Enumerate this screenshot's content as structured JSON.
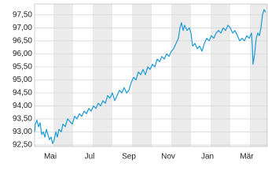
{
  "chart_data": {
    "type": "line",
    "x": [
      -0.96,
      -0.92,
      -0.84,
      -0.76,
      -0.68,
      -0.6,
      -0.52,
      -0.44,
      -0.36,
      -0.28,
      -0.2,
      -0.12,
      -0.04,
      0.04,
      0.12,
      0.2,
      0.28,
      0.4,
      0.48,
      0.6,
      0.72,
      0.84,
      0.96,
      1.08,
      1.2,
      1.32,
      1.44,
      1.56,
      1.68,
      1.8,
      1.92,
      2.04,
      2.16,
      2.28,
      2.4,
      2.52,
      2.64,
      2.76,
      2.88,
      3.0,
      3.12,
      3.24,
      3.36,
      3.48,
      3.6,
      3.72,
      3.84,
      3.96,
      4.08,
      4.2,
      4.32,
      4.44,
      4.56,
      4.68,
      4.8,
      4.92,
      5.04,
      5.16,
      5.28,
      5.4,
      5.52,
      5.64,
      5.76,
      5.88,
      6.0,
      6.12,
      6.24,
      6.36,
      6.44,
      6.52,
      6.6,
      6.68,
      6.8,
      6.92,
      7.0,
      7.08,
      7.2,
      7.32,
      7.44,
      7.56,
      7.68,
      7.8,
      7.92,
      8.04,
      8.16,
      8.28,
      8.4,
      8.52,
      8.64,
      8.76,
      8.88,
      9.0,
      9.12,
      9.24,
      9.36,
      9.48,
      9.6,
      9.72,
      9.84,
      9.96,
      10.08,
      10.12,
      10.16,
      10.24,
      10.32,
      10.4,
      10.48,
      10.56,
      10.64,
      10.72,
      10.8
    ],
    "series": [
      {
        "color": "#1a9bd7",
        "values": [
          93.0,
          93.3,
          93.45,
          93.2,
          93.35,
          92.9,
          93.0,
          92.8,
          93.1,
          92.9,
          92.7,
          92.8,
          92.55,
          92.7,
          93.0,
          92.8,
          93.1,
          93.0,
          93.3,
          93.2,
          93.5,
          93.4,
          93.3,
          93.6,
          93.5,
          93.7,
          93.6,
          93.8,
          93.7,
          93.9,
          93.8,
          94.0,
          93.9,
          94.1,
          94.0,
          94.2,
          94.1,
          94.4,
          94.3,
          94.5,
          94.2,
          94.4,
          94.6,
          94.5,
          94.7,
          94.5,
          94.6,
          94.9,
          95.1,
          95.0,
          95.3,
          95.2,
          95.4,
          95.2,
          95.5,
          95.4,
          95.6,
          95.5,
          95.8,
          95.7,
          95.9,
          95.8,
          96.0,
          95.9,
          96.1,
          96.2,
          96.4,
          96.6,
          97.0,
          97.2,
          96.9,
          97.1,
          96.9,
          97.0,
          96.8,
          96.3,
          96.4,
          96.2,
          96.3,
          96.1,
          96.4,
          96.6,
          96.5,
          96.7,
          96.6,
          96.8,
          96.9,
          96.8,
          97.0,
          96.9,
          97.1,
          97.0,
          96.8,
          96.9,
          96.7,
          96.5,
          96.6,
          96.5,
          96.7,
          96.6,
          96.8,
          96.3,
          95.6,
          96.0,
          96.6,
          96.8,
          96.7,
          97.0,
          97.5,
          97.7,
          97.6
        ]
      }
    ],
    "xlim": [
      -0.96,
      10.88
    ],
    "xticks": [
      {
        "value": 0,
        "label": "Mai"
      },
      {
        "value": 2,
        "label": "Jul"
      },
      {
        "value": 4,
        "label": "Sep"
      },
      {
        "value": 6,
        "label": "Nov"
      },
      {
        "value": 8,
        "label": "Jan"
      },
      {
        "value": 10,
        "label": "Mär"
      }
    ],
    "ylim": [
      92.44,
      97.92
    ],
    "yticks": [
      {
        "value": 92.5,
        "label": "92,50"
      },
      {
        "value": 93,
        "label": "93,00"
      },
      {
        "value": 93.5,
        "label": "93,50"
      },
      {
        "value": 94,
        "label": "94,00"
      },
      {
        "value": 94.5,
        "label": "94,50"
      },
      {
        "value": 95,
        "label": "95,00"
      },
      {
        "value": 95.5,
        "label": "95,50"
      },
      {
        "value": 96,
        "label": "96,00"
      },
      {
        "value": 96.5,
        "label": "96,50"
      },
      {
        "value": 97,
        "label": "97,00"
      },
      {
        "value": 97.5,
        "label": "97,50"
      }
    ],
    "grid": true
  }
}
